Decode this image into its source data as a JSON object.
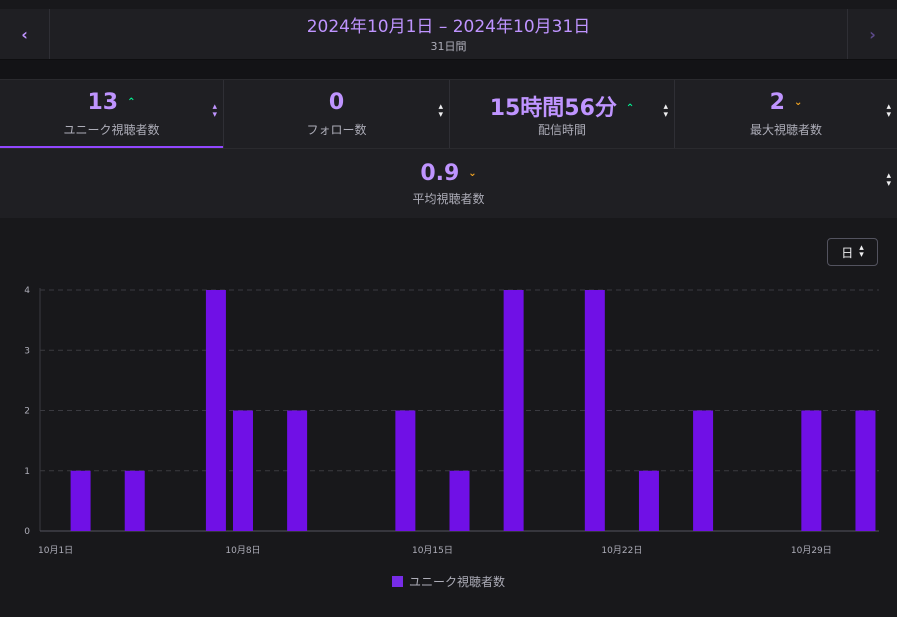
{
  "header": {
    "date_range": "2024年10月1日 – 2024年10月31日",
    "duration": "31日間",
    "prev_label": "‹",
    "next_label": "›"
  },
  "stats": [
    {
      "value": "13",
      "label": "ユニーク視聴者数",
      "trend": "up",
      "active": true
    },
    {
      "value": "0",
      "label": "フォロー数",
      "trend": "none",
      "active": false
    },
    {
      "value": "15時間56分",
      "label": "配信時間",
      "trend": "up",
      "active": false
    },
    {
      "value": "2",
      "label": "最大視聴者数",
      "trend": "down",
      "active": false
    },
    {
      "value": "0.9",
      "label": "平均視聴者数",
      "trend": "down",
      "active": false
    }
  ],
  "period_select": {
    "value": "日"
  },
  "colors": {
    "bar": "#7010e6",
    "accent": "#bf94ff",
    "up": "#00f593",
    "down": "#f5a623"
  },
  "chart_data": {
    "type": "bar",
    "categories": [
      "10月1日",
      "10月2日",
      "10月3日",
      "10月4日",
      "10月5日",
      "10月6日",
      "10月7日",
      "10月8日",
      "10月9日",
      "10月10日",
      "10月11日",
      "10月12日",
      "10月13日",
      "10月14日",
      "10月15日",
      "10月16日",
      "10月17日",
      "10月18日",
      "10月19日",
      "10月20日",
      "10月21日",
      "10月22日",
      "10月23日",
      "10月24日",
      "10月25日",
      "10月26日",
      "10月27日",
      "10月28日",
      "10月29日",
      "10月30日",
      "10月31日"
    ],
    "x_tick_labels": [
      "10月1日",
      "10月8日",
      "10月15日",
      "10月22日",
      "10月29日"
    ],
    "y_ticks": [
      0,
      1,
      2,
      3,
      4
    ],
    "ylim": [
      0,
      4
    ],
    "grid": true,
    "legend_position": "bottom",
    "series": [
      {
        "name": "ユニーク視聴者数",
        "values": [
          0,
          1,
          0,
          1,
          0,
          0,
          4,
          2,
          0,
          2,
          0,
          0,
          0,
          2,
          0,
          1,
          0,
          4,
          0,
          0,
          4,
          0,
          1,
          0,
          2,
          0,
          0,
          0,
          2,
          0,
          2
        ]
      }
    ]
  }
}
